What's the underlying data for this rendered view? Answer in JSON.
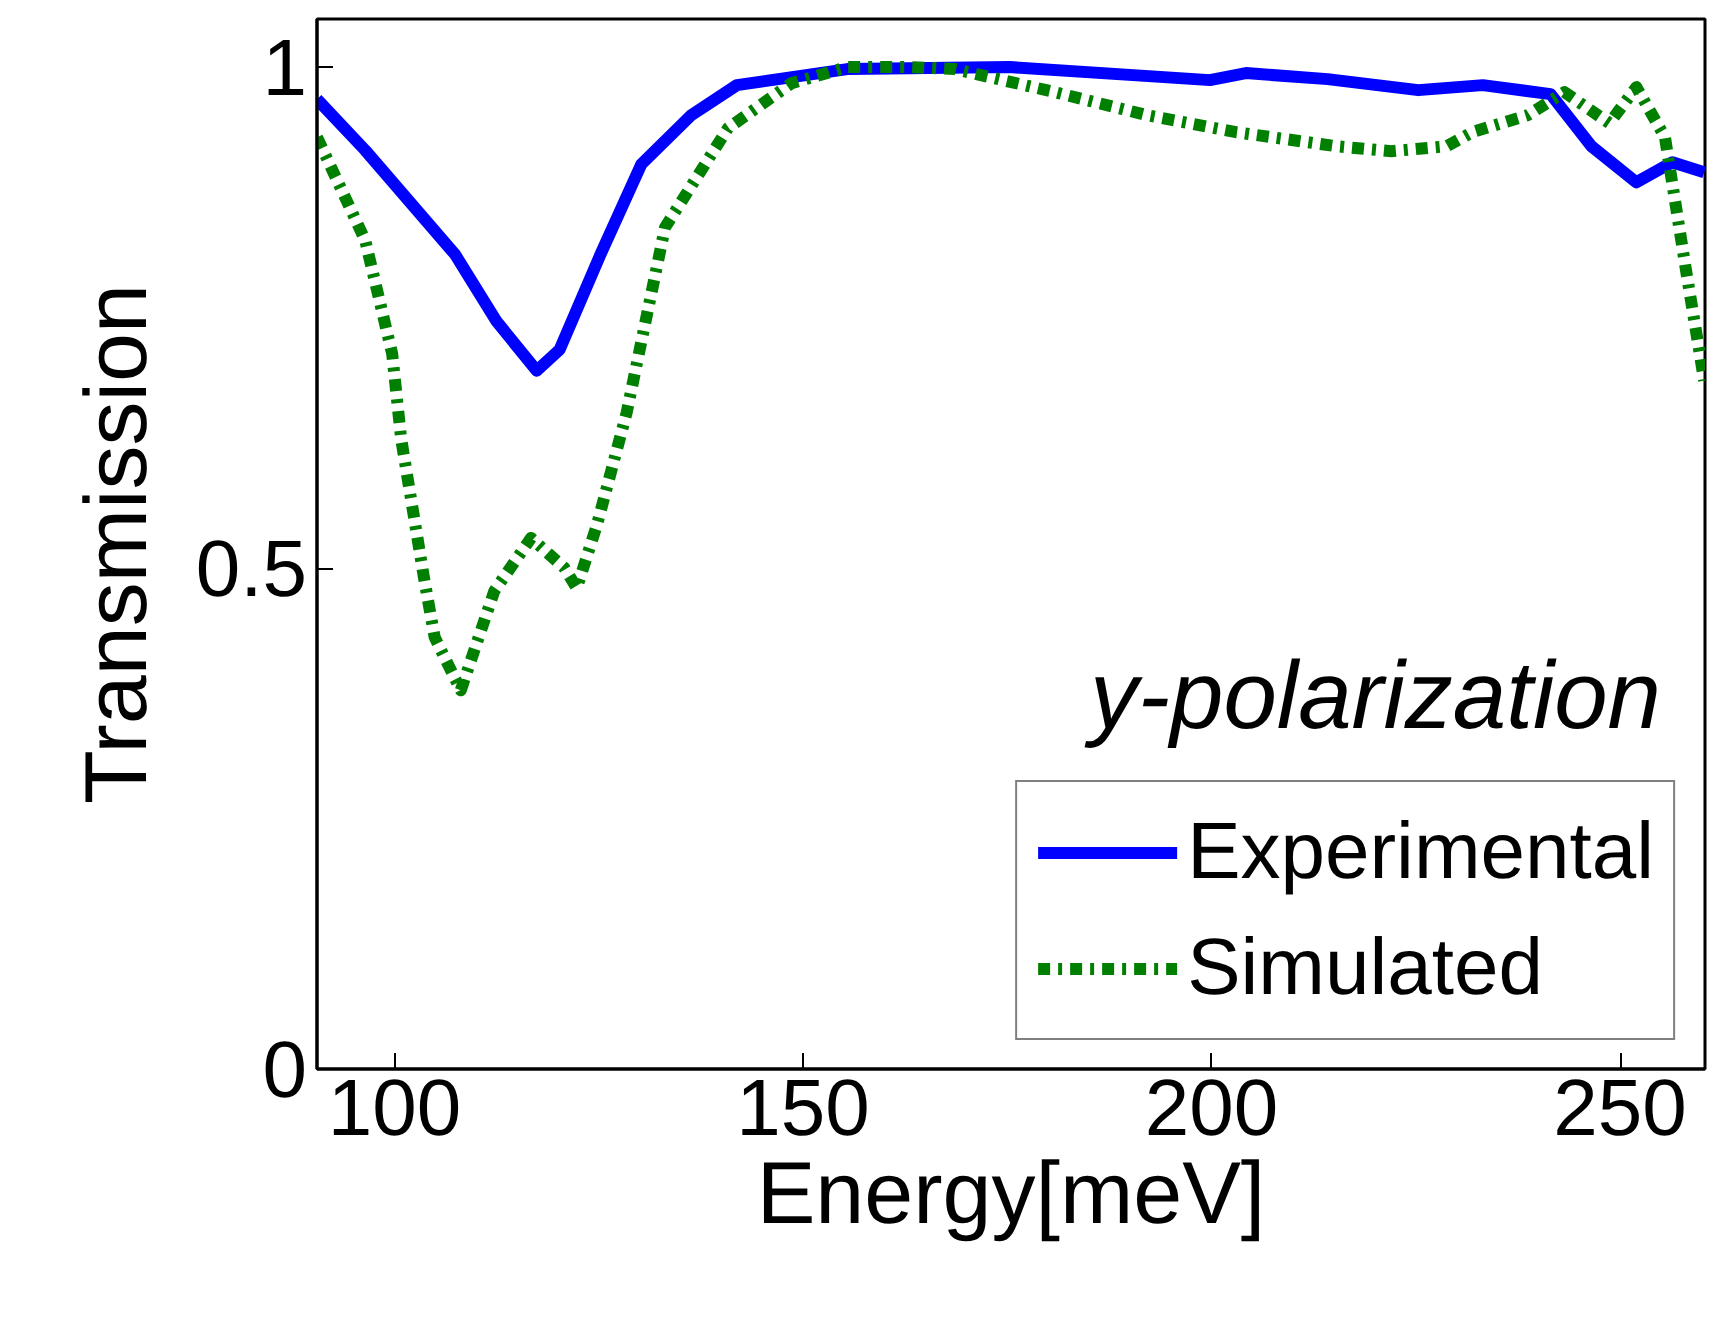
{
  "chart_data": {
    "type": "line",
    "xlabel": "Energy[meV]",
    "ylabel": "Transmission",
    "annotations": [
      "y-polarization"
    ],
    "xlim": [
      90.5,
      260.4
    ],
    "ylim": [
      0,
      1.048
    ],
    "xticks": [
      100,
      150,
      200,
      250
    ],
    "yticks": [
      0,
      0.5,
      1
    ],
    "grid": false,
    "legend": "bottom right",
    "marker": "none",
    "series": [
      {
        "name": "Experimental",
        "color": "#0000ff",
        "line_style": "solid",
        "x": [
          90.5,
          96.4,
          107.4,
          112.5,
          117.4,
          120.2,
          125.2,
          130.2,
          136.3,
          141.9,
          155.4,
          175.3,
          199.8,
          204.2,
          214.2,
          225.3,
          233.2,
          241.5,
          246.5,
          252,
          256.4,
          260.3
        ],
        "values": [
          0.968,
          0.917,
          0.813,
          0.746,
          0.697,
          0.718,
          0.813,
          0.903,
          0.952,
          0.982,
          0.998,
          1.0,
          0.987,
          0.994,
          0.988,
          0.977,
          0.982,
          0.973,
          0.921,
          0.885,
          0.905,
          0.895
        ]
      },
      {
        "name": "Simulated",
        "color": "#007f00",
        "line_style": "dashdot",
        "x": [
          90.5,
          96.4,
          99.7,
          100.8,
          103.6,
          104.9,
          108.1,
          112.2,
          116.7,
          120.8,
          122.3,
          124.8,
          128.4,
          133.1,
          140.8,
          148.6,
          155.4,
          163.2,
          168.6,
          180.8,
          192.1,
          203,
          215.3,
          222,
          228.8,
          231.9,
          238.7,
          243.2,
          248.7,
          252,
          255.5,
          258.1,
          260.3
        ],
        "values": [
          0.93,
          0.827,
          0.714,
          0.629,
          0.49,
          0.431,
          0.378,
          0.477,
          0.53,
          0.5,
          0.48,
          0.544,
          0.655,
          0.84,
          0.939,
          0.984,
          1.0,
          1.0,
          0.998,
          0.975,
          0.952,
          0.935,
          0.921,
          0.916,
          0.921,
          0.935,
          0.952,
          0.975,
          0.944,
          0.98,
          0.93,
          0.796,
          0.687
        ]
      }
    ]
  }
}
